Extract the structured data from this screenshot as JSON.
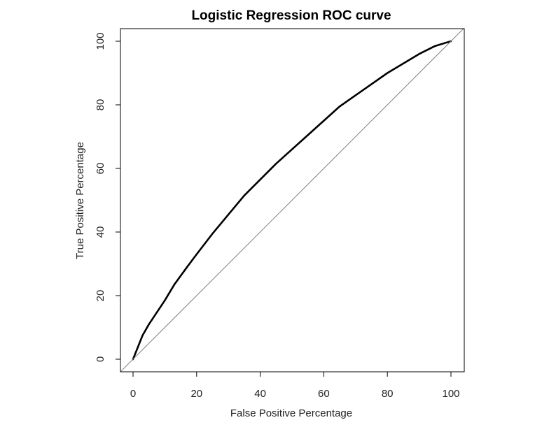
{
  "chart_data": {
    "type": "line",
    "title": "Logistic Regression ROC curve",
    "xlabel": "False Positive Percentage",
    "ylabel": "True Positive Percentage",
    "xlim": [
      0,
      100
    ],
    "ylim": [
      0,
      100
    ],
    "x_ticks": [
      0,
      20,
      40,
      60,
      80,
      100
    ],
    "y_ticks": [
      0,
      20,
      40,
      60,
      80,
      100
    ],
    "x_tick_labels": [
      "0",
      "20",
      "40",
      "60",
      "80",
      "100"
    ],
    "y_tick_labels": [
      "0",
      "20",
      "40",
      "60",
      "80",
      "100"
    ],
    "grid": false,
    "legend": "none",
    "series": [
      {
        "role": "roc-curve",
        "color": "#000000",
        "x": [
          0,
          1,
          2,
          3,
          5,
          7,
          10,
          13,
          17,
          20,
          25,
          30,
          35,
          40,
          45,
          50,
          55,
          60,
          65,
          70,
          75,
          80,
          85,
          90,
          95,
          100
        ],
        "y": [
          0,
          2.5,
          5,
          7.5,
          11,
          14,
          18.5,
          23.5,
          29,
          33,
          39.5,
          45.5,
          51.5,
          56.5,
          61.5,
          66,
          70.5,
          75,
          79.5,
          83,
          86.5,
          90,
          93,
          96,
          98.5,
          100
        ]
      },
      {
        "role": "reference-diagonal",
        "color": "#808080",
        "x": [
          -5,
          105
        ],
        "y": [
          -5,
          105
        ]
      }
    ]
  }
}
